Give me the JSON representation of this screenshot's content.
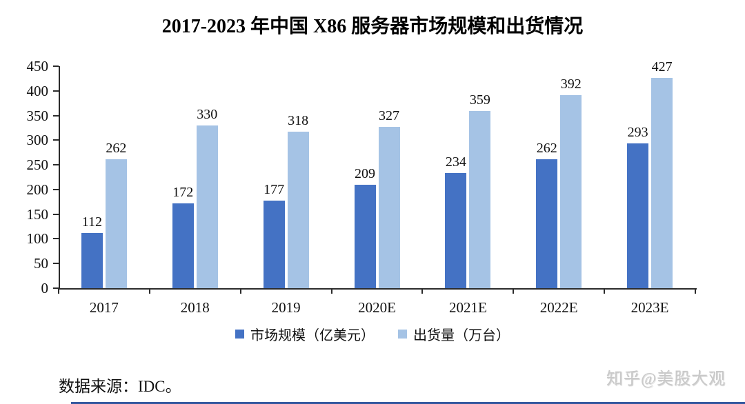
{
  "chart_data": {
    "type": "bar",
    "title": "2017-2023 年中国 X86 服务器市场规模和出货情况",
    "categories": [
      "2017",
      "2018",
      "2019",
      "2020E",
      "2021E",
      "2022E",
      "2023E"
    ],
    "series": [
      {
        "name": "市场规模（亿美元）",
        "color": "#4472C4",
        "values": [
          112,
          172,
          177,
          209,
          234,
          262,
          293
        ]
      },
      {
        "name": "出货量（万台）",
        "color": "#A5C3E5",
        "values": [
          262,
          330,
          318,
          327,
          359,
          392,
          427
        ]
      }
    ],
    "y_axis": {
      "min": 0,
      "max": 450,
      "step": 50,
      "ticks": [
        0,
        50,
        100,
        150,
        200,
        250,
        300,
        350,
        400,
        450
      ]
    },
    "grid": false,
    "legend_position": "bottom",
    "data_labels": true
  },
  "footer": {
    "source_text": "数据来源：IDC。"
  },
  "watermark": {
    "text": "知乎@美股大观"
  },
  "colors": {
    "series1": "#4472C4",
    "series2": "#A5C3E5",
    "axis": "#2b2b2b",
    "bottom_rule": "#35589f"
  }
}
